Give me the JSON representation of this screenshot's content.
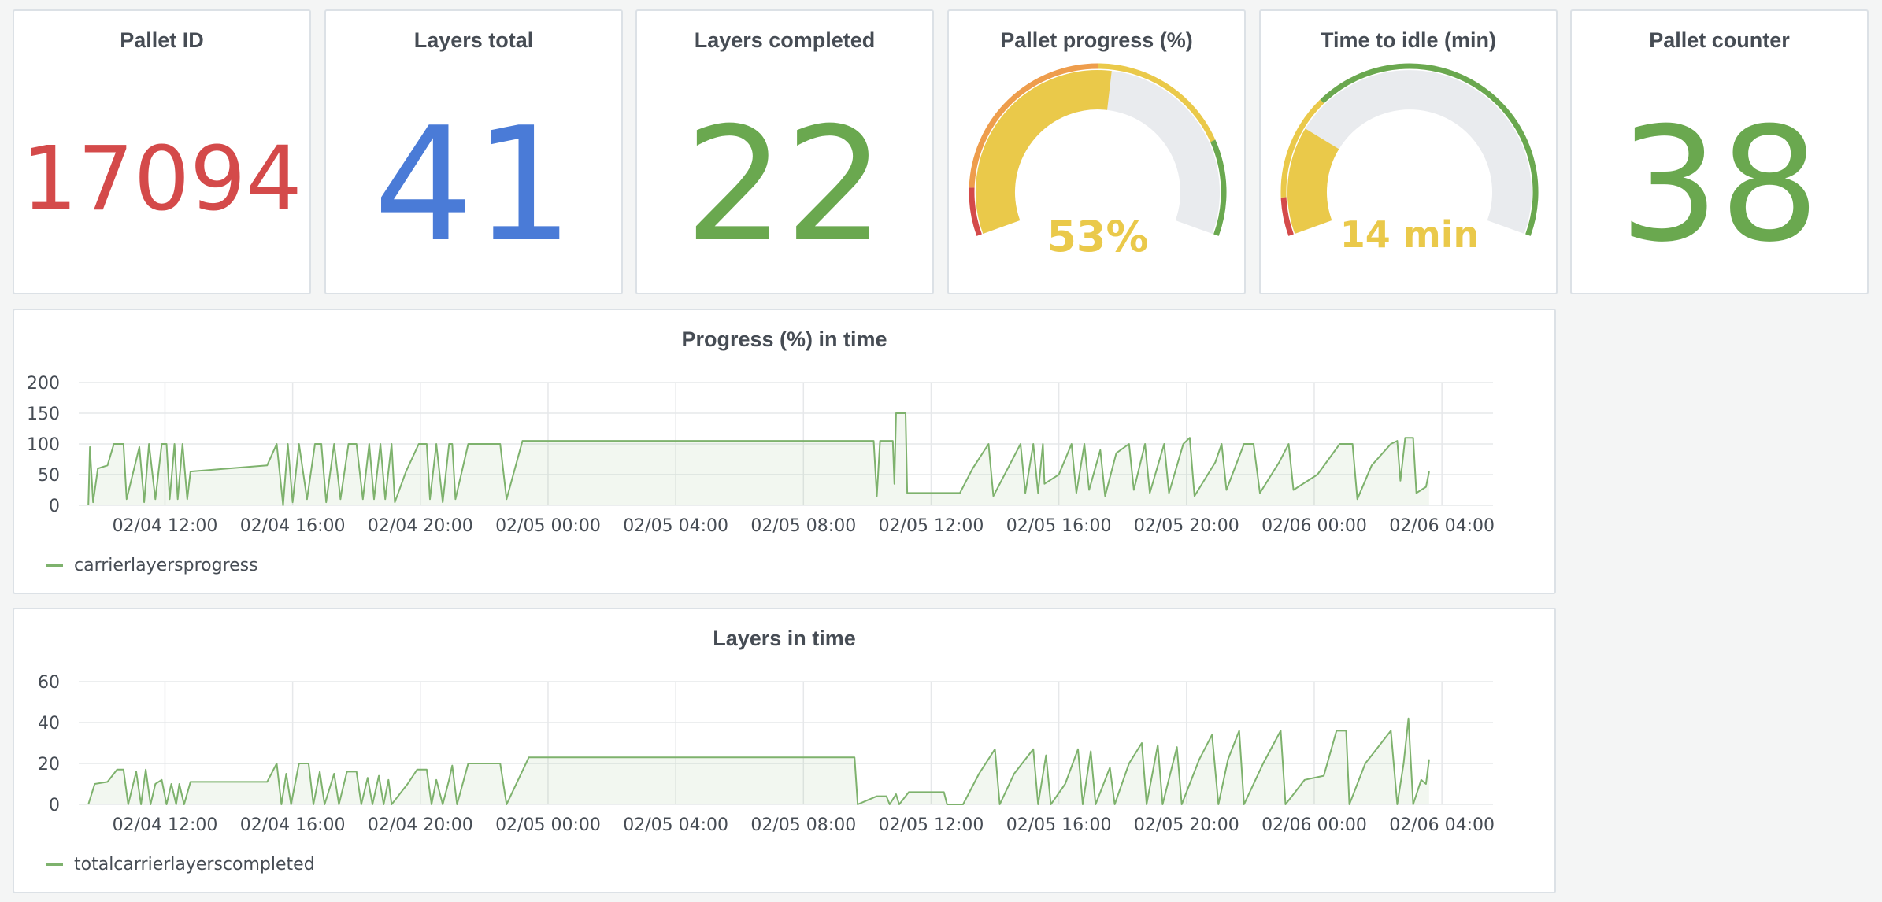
{
  "colors": {
    "red": "#d44a4a",
    "blue": "#4a7bd7",
    "green": "#6aa84f",
    "yellow": "#eac94a",
    "orange": "#ee9d4c",
    "series": "#7eb26d",
    "gauge_track": "#e9ebee"
  },
  "stats": {
    "pallet_id": {
      "title": "Pallet ID",
      "value": "17094",
      "color": "red"
    },
    "layers_total": {
      "title": "Layers total",
      "value": "41",
      "color": "blue"
    },
    "layers_completed": {
      "title": "Layers completed",
      "value": "22",
      "color": "green"
    },
    "pallet_counter": {
      "title": "Pallet counter",
      "value": "38",
      "color": "green"
    }
  },
  "gauges": {
    "pallet_progress": {
      "title": "Pallet progress (%)",
      "value": 53,
      "min": 0,
      "max": 100,
      "label": "53%"
    },
    "time_to_idle": {
      "title": "Time to idle (min)",
      "value": 14,
      "min": 0,
      "max": 60,
      "label": "14 min"
    }
  },
  "chart_data": [
    {
      "type": "area",
      "title": "Progress (%) in time",
      "xlabel": "",
      "ylabel": "",
      "ylim": [
        0,
        200
      ],
      "yticks": [
        0,
        50,
        100,
        150,
        200
      ],
      "x_ticks": [
        "02/04 12:00",
        "02/04 16:00",
        "02/04 20:00",
        "02/05 00:00",
        "02/05 04:00",
        "02/05 08:00",
        "02/05 12:00",
        "02/05 16:00",
        "02/05 20:00",
        "02/06 00:00",
        "02/06 04:00"
      ],
      "x_range_hours": [
        -2.7,
        41.6
      ],
      "legend": "bottom-left",
      "grid": true,
      "series": [
        {
          "name": "carrierlayersprogress",
          "points": [
            [
              -2.4,
              0
            ],
            [
              -2.35,
              95
            ],
            [
              -2.25,
              5
            ],
            [
              -2.1,
              60
            ],
            [
              -1.8,
              65
            ],
            [
              -1.6,
              100
            ],
            [
              -1.3,
              100
            ],
            [
              -1.2,
              10
            ],
            [
              -0.8,
              95
            ],
            [
              -0.65,
              5
            ],
            [
              -0.5,
              100
            ],
            [
              -0.3,
              10
            ],
            [
              -0.1,
              100
            ],
            [
              0.05,
              100
            ],
            [
              0.15,
              10
            ],
            [
              0.3,
              100
            ],
            [
              0.4,
              10
            ],
            [
              0.55,
              100
            ],
            [
              0.7,
              10
            ],
            [
              0.8,
              55
            ],
            [
              3.2,
              65
            ],
            [
              3.5,
              100
            ],
            [
              3.7,
              0
            ],
            [
              3.85,
              100
            ],
            [
              4.0,
              5
            ],
            [
              4.2,
              100
            ],
            [
              4.45,
              10
            ],
            [
              4.7,
              100
            ],
            [
              4.9,
              100
            ],
            [
              5.05,
              5
            ],
            [
              5.3,
              100
            ],
            [
              5.5,
              10
            ],
            [
              5.75,
              100
            ],
            [
              6.0,
              100
            ],
            [
              6.2,
              10
            ],
            [
              6.4,
              100
            ],
            [
              6.55,
              10
            ],
            [
              6.75,
              100
            ],
            [
              6.9,
              10
            ],
            [
              7.1,
              100
            ],
            [
              7.2,
              5
            ],
            [
              7.55,
              55
            ],
            [
              7.95,
              100
            ],
            [
              8.2,
              100
            ],
            [
              8.3,
              10
            ],
            [
              8.5,
              100
            ],
            [
              8.7,
              5
            ],
            [
              8.9,
              100
            ],
            [
              9.0,
              100
            ],
            [
              9.1,
              10
            ],
            [
              9.5,
              100
            ],
            [
              10.5,
              100
            ],
            [
              10.7,
              10
            ],
            [
              11.2,
              105
            ],
            [
              22.2,
              105
            ],
            [
              22.3,
              15
            ],
            [
              22.4,
              105
            ],
            [
              22.8,
              105
            ],
            [
              22.85,
              35
            ],
            [
              22.9,
              150
            ],
            [
              23.2,
              150
            ],
            [
              23.25,
              20
            ],
            [
              24.9,
              20
            ],
            [
              25.3,
              60
            ],
            [
              25.8,
              100
            ],
            [
              25.95,
              15
            ],
            [
              26.4,
              60
            ],
            [
              26.8,
              100
            ],
            [
              26.95,
              20
            ],
            [
              27.2,
              100
            ],
            [
              27.35,
              20
            ],
            [
              27.5,
              100
            ],
            [
              27.55,
              35
            ],
            [
              28.0,
              50
            ],
            [
              28.4,
              100
            ],
            [
              28.55,
              20
            ],
            [
              28.8,
              100
            ],
            [
              28.95,
              25
            ],
            [
              29.3,
              90
            ],
            [
              29.45,
              15
            ],
            [
              29.8,
              85
            ],
            [
              30.2,
              100
            ],
            [
              30.35,
              25
            ],
            [
              30.7,
              100
            ],
            [
              30.85,
              20
            ],
            [
              31.3,
              100
            ],
            [
              31.45,
              20
            ],
            [
              31.9,
              100
            ],
            [
              32.1,
              110
            ],
            [
              32.25,
              15
            ],
            [
              32.9,
              70
            ],
            [
              33.1,
              100
            ],
            [
              33.25,
              25
            ],
            [
              33.8,
              100
            ],
            [
              34.1,
              100
            ],
            [
              34.3,
              20
            ],
            [
              34.9,
              70
            ],
            [
              35.2,
              100
            ],
            [
              35.35,
              25
            ],
            [
              36.1,
              50
            ],
            [
              36.8,
              100
            ],
            [
              37.2,
              100
            ],
            [
              37.35,
              10
            ],
            [
              37.8,
              65
            ],
            [
              38.4,
              100
            ],
            [
              38.6,
              105
            ],
            [
              38.7,
              40
            ],
            [
              38.85,
              110
            ],
            [
              39.1,
              110
            ],
            [
              39.2,
              20
            ],
            [
              39.5,
              30
            ],
            [
              39.6,
              55
            ]
          ]
        }
      ]
    },
    {
      "type": "area",
      "title": "Layers in time",
      "xlabel": "",
      "ylabel": "",
      "ylim": [
        0,
        60
      ],
      "yticks": [
        0,
        20,
        40,
        60
      ],
      "x_ticks": [
        "02/04 12:00",
        "02/04 16:00",
        "02/04 20:00",
        "02/05 00:00",
        "02/05 04:00",
        "02/05 08:00",
        "02/05 12:00",
        "02/05 16:00",
        "02/05 20:00",
        "02/06 00:00",
        "02/06 04:00"
      ],
      "x_range_hours": [
        -2.7,
        41.6
      ],
      "legend": "bottom-left",
      "grid": true,
      "series": [
        {
          "name": "totalcarrierlayerscompleted",
          "points": [
            [
              -2.4,
              0
            ],
            [
              -2.2,
              10
            ],
            [
              -1.8,
              11
            ],
            [
              -1.5,
              17
            ],
            [
              -1.3,
              17
            ],
            [
              -1.15,
              0
            ],
            [
              -0.9,
              16
            ],
            [
              -0.75,
              0
            ],
            [
              -0.6,
              17
            ],
            [
              -0.45,
              0
            ],
            [
              -0.3,
              10
            ],
            [
              -0.1,
              12
            ],
            [
              0.05,
              0
            ],
            [
              0.2,
              10
            ],
            [
              0.35,
              0
            ],
            [
              0.45,
              10
            ],
            [
              0.6,
              0
            ],
            [
              0.8,
              11
            ],
            [
              3.2,
              11
            ],
            [
              3.5,
              20
            ],
            [
              3.65,
              0
            ],
            [
              3.8,
              15
            ],
            [
              3.95,
              0
            ],
            [
              4.2,
              20
            ],
            [
              4.5,
              20
            ],
            [
              4.65,
              0
            ],
            [
              4.85,
              16
            ],
            [
              5.0,
              0
            ],
            [
              5.3,
              15
            ],
            [
              5.45,
              0
            ],
            [
              5.7,
              16
            ],
            [
              6.0,
              16
            ],
            [
              6.15,
              0
            ],
            [
              6.35,
              13
            ],
            [
              6.5,
              0
            ],
            [
              6.7,
              14
            ],
            [
              6.85,
              0
            ],
            [
              7.0,
              12
            ],
            [
              7.1,
              0
            ],
            [
              7.6,
              10
            ],
            [
              7.9,
              17
            ],
            [
              8.2,
              17
            ],
            [
              8.35,
              0
            ],
            [
              8.5,
              12
            ],
            [
              8.7,
              0
            ],
            [
              8.9,
              12
            ],
            [
              9.0,
              19
            ],
            [
              9.15,
              0
            ],
            [
              9.5,
              20
            ],
            [
              10.5,
              20
            ],
            [
              10.7,
              0
            ],
            [
              11.4,
              23
            ],
            [
              21.6,
              23
            ],
            [
              21.7,
              0
            ],
            [
              22.3,
              4
            ],
            [
              22.6,
              4
            ],
            [
              22.7,
              0
            ],
            [
              22.9,
              5
            ],
            [
              23.0,
              0
            ],
            [
              23.3,
              6
            ],
            [
              24.4,
              6
            ],
            [
              24.5,
              0
            ],
            [
              25.0,
              0
            ],
            [
              25.5,
              15
            ],
            [
              26.0,
              27
            ],
            [
              26.15,
              0
            ],
            [
              26.6,
              15
            ],
            [
              27.2,
              27
            ],
            [
              27.35,
              0
            ],
            [
              27.6,
              24
            ],
            [
              27.75,
              0
            ],
            [
              28.2,
              10
            ],
            [
              28.6,
              27
            ],
            [
              28.75,
              0
            ],
            [
              29.0,
              26
            ],
            [
              29.15,
              0
            ],
            [
              29.6,
              18
            ],
            [
              29.75,
              0
            ],
            [
              30.2,
              20
            ],
            [
              30.6,
              30
            ],
            [
              30.75,
              0
            ],
            [
              31.1,
              29
            ],
            [
              31.25,
              0
            ],
            [
              31.7,
              28
            ],
            [
              31.85,
              0
            ],
            [
              32.4,
              22
            ],
            [
              32.8,
              34
            ],
            [
              33.0,
              0
            ],
            [
              33.3,
              22
            ],
            [
              33.65,
              36
            ],
            [
              33.8,
              0
            ],
            [
              34.4,
              20
            ],
            [
              34.95,
              36
            ],
            [
              35.1,
              0
            ],
            [
              35.7,
              12
            ],
            [
              36.3,
              14
            ],
            [
              36.7,
              36
            ],
            [
              37.0,
              36
            ],
            [
              37.1,
              0
            ],
            [
              37.6,
              20
            ],
            [
              38.4,
              36
            ],
            [
              38.6,
              0
            ],
            [
              38.8,
              20
            ],
            [
              38.95,
              42
            ],
            [
              39.1,
              0
            ],
            [
              39.35,
              12
            ],
            [
              39.5,
              10
            ],
            [
              39.6,
              22
            ]
          ]
        }
      ]
    }
  ]
}
